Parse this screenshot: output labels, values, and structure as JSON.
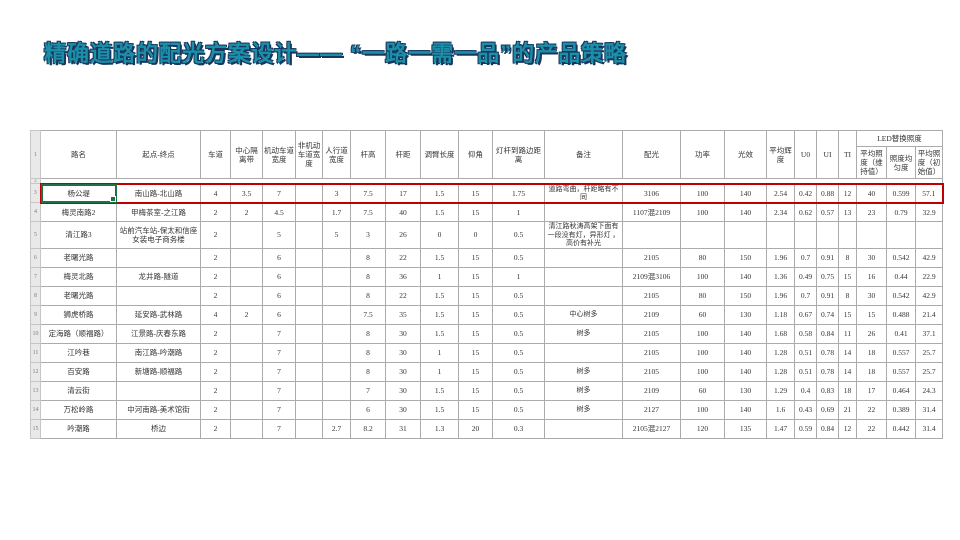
{
  "slide": {
    "title": "精确道路的配光方案设计——  “一路一需一品”的产品策略"
  },
  "colors": {
    "title_teal": "#1b8fa8",
    "title_shadow_navy": "#17375e",
    "highlight_red": "#c00000",
    "selection_green": "#1e7145"
  },
  "table": {
    "gutter": [
      "1",
      "2"
    ],
    "headers": [
      "路名",
      "起点-终点",
      "车道",
      "中心隔离带",
      "机动车道宽度",
      "非机动车道宽度",
      "人行道宽度",
      "杆高",
      "杆距",
      "调臂长度",
      "仰角",
      "灯杆到路边距离",
      "备注",
      "配光",
      "功率",
      "光效",
      "平均辉度",
      "U0",
      "UI",
      "TI"
    ],
    "led_group": {
      "label": "LED替换照度",
      "subheaders": [
        "平均照度（维持值）",
        "照度均匀度",
        "平均照度（初始值）"
      ]
    },
    "rows": [
      {
        "num": "3",
        "highlight": true,
        "cells": [
          "杨公堤",
          "南山路-北山路",
          "4",
          "3.5",
          "7",
          "",
          "3",
          "7.5",
          "17",
          "1.5",
          "15",
          "1.75",
          "道路弯曲，杆距略有不同",
          "3106",
          "100",
          "140",
          "2.54",
          "0.42",
          "0.88",
          "12",
          "40",
          "0.599",
          "57.1"
        ]
      },
      {
        "num": "4",
        "highlight": false,
        "cells": [
          "梅灵南路2",
          "甲梅茶室-之江路",
          "2",
          "2",
          "4.5",
          "",
          "1.7",
          "7.5",
          "40",
          "1.5",
          "15",
          "1",
          "",
          "1107混2109",
          "100",
          "140",
          "2.34",
          "0.62",
          "0.57",
          "13",
          "23",
          "0.79",
          "32.9"
        ]
      },
      {
        "num": "5",
        "highlight": false,
        "cells": [
          "清江路3",
          "站前汽车站-保太和信座女装电子商务楼",
          "2",
          "",
          "5",
          "",
          "5",
          "3",
          "26",
          "0",
          "0",
          "0.5",
          "清江路秋涛高架下面有一段没有灯，异形灯 ，高价有补光",
          "",
          "",
          "",
          "",
          "",
          "",
          "",
          "",
          "",
          ""
        ]
      },
      {
        "num": "6",
        "highlight": false,
        "cells": [
          "老曙光路",
          "",
          "2",
          "",
          "6",
          "",
          "",
          "8",
          "22",
          "1.5",
          "15",
          "0.5",
          "",
          "2105",
          "80",
          "150",
          "1.96",
          "0.7",
          "0.91",
          "8",
          "30",
          "0.542",
          "42.9"
        ]
      },
      {
        "num": "7",
        "highlight": false,
        "cells": [
          "梅灵北路",
          "龙井路-隧道",
          "2",
          "",
          "6",
          "",
          "",
          "8",
          "36",
          "1",
          "15",
          "1",
          "",
          "2109混3106",
          "100",
          "140",
          "1.36",
          "0.49",
          "0.75",
          "15",
          "16",
          "0.44",
          "22.9"
        ]
      },
      {
        "num": "8",
        "highlight": false,
        "cells": [
          "老曙光路",
          "",
          "2",
          "",
          "6",
          "",
          "",
          "8",
          "22",
          "1.5",
          "15",
          "0.5",
          "",
          "2105",
          "80",
          "150",
          "1.96",
          "0.7",
          "0.91",
          "8",
          "30",
          "0.542",
          "42.9"
        ]
      },
      {
        "num": "9",
        "highlight": false,
        "cells": [
          "狮虎桥路",
          "延安路-武林路",
          "4",
          "2",
          "6",
          "",
          "",
          "7.5",
          "35",
          "1.5",
          "15",
          "0.5",
          "中心树多",
          "2109",
          "60",
          "130",
          "1.18",
          "0.67",
          "0.74",
          "15",
          "15",
          "0.488",
          "21.4"
        ]
      },
      {
        "num": "10",
        "highlight": false,
        "cells": [
          "定海路（顺福路）",
          "江景路-庆春东路",
          "2",
          "",
          "7",
          "",
          "",
          "8",
          "30",
          "1.5",
          "15",
          "0.5",
          "树多",
          "2105",
          "100",
          "140",
          "1.68",
          "0.58",
          "0.84",
          "11",
          "26",
          "0.41",
          "37.1"
        ]
      },
      {
        "num": "11",
        "highlight": false,
        "cells": [
          "江吟巷",
          "南江路-吟潮路",
          "2",
          "",
          "7",
          "",
          "",
          "8",
          "30",
          "1",
          "15",
          "0.5",
          "",
          "2105",
          "100",
          "140",
          "1.28",
          "0.51",
          "0.78",
          "14",
          "18",
          "0.557",
          "25.7"
        ]
      },
      {
        "num": "12",
        "highlight": false,
        "cells": [
          "百安路",
          "新塘路-顺福路",
          "2",
          "",
          "7",
          "",
          "",
          "8",
          "30",
          "1",
          "15",
          "0.5",
          "树多",
          "2105",
          "100",
          "140",
          "1.28",
          "0.51",
          "0.78",
          "14",
          "18",
          "0.557",
          "25.7"
        ]
      },
      {
        "num": "13",
        "highlight": false,
        "cells": [
          "清云街",
          "",
          "2",
          "",
          "7",
          "",
          "",
          "7",
          "30",
          "1.5",
          "15",
          "0.5",
          "树多",
          "2109",
          "60",
          "130",
          "1.29",
          "0.4",
          "0.83",
          "18",
          "17",
          "0.464",
          "24.3"
        ]
      },
      {
        "num": "14",
        "highlight": false,
        "cells": [
          "万松岭路",
          "中河南路-美术馆街",
          "2",
          "",
          "7",
          "",
          "",
          "6",
          "30",
          "1.5",
          "15",
          "0.5",
          "树多",
          "2127",
          "100",
          "140",
          "1.6",
          "0.43",
          "0.69",
          "21",
          "22",
          "0.389",
          "31.4"
        ]
      },
      {
        "num": "15",
        "highlight": false,
        "cells": [
          "吟潮路",
          "桥边",
          "2",
          "",
          "7",
          "",
          "2.7",
          "8.2",
          "31",
          "1.3",
          "20",
          "0.3",
          "",
          "2105混2127",
          "120",
          "135",
          "1.47",
          "0.59",
          "0.84",
          "12",
          "22",
          "0.442",
          "31.4"
        ]
      }
    ]
  }
}
